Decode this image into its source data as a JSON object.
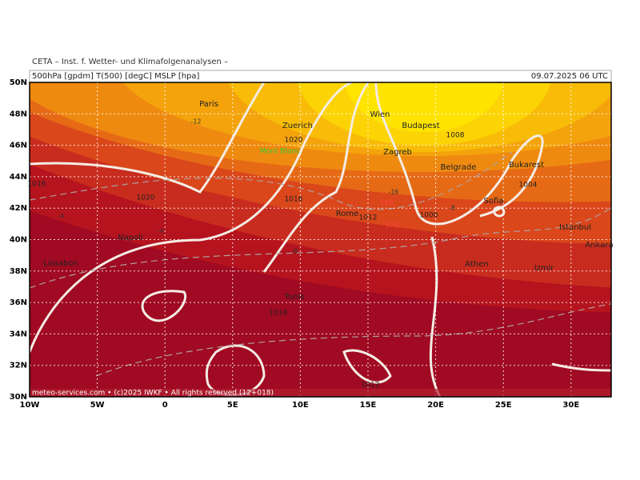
{
  "header": {
    "institute": "CETA – Inst. f. Wetter- und Klimafolgenanalysen –",
    "fields": "500hPa [gpdm] T(500) [degC] MSLP [hpa]",
    "valid_time": "09.07.2025 06 UTC"
  },
  "map": {
    "lat_labels": [
      "50N",
      "48N",
      "46N",
      "44N",
      "42N",
      "40N",
      "38N",
      "36N",
      "34N",
      "32N",
      "30N"
    ],
    "lon_labels": [
      "10W",
      "5W",
      "0",
      "5E",
      "10E",
      "15E",
      "20E",
      "25E",
      "30E"
    ],
    "cities": [
      "Paris",
      "Zuerich",
      "Wien",
      "Budapest",
      "Zagreb",
      "Belgrade",
      "Bukarest",
      "Sofia",
      "Rome",
      "Napoli",
      "Lissabon",
      "Istanbul",
      "Ankara",
      "Athen",
      "Izmir",
      "Tunis"
    ],
    "landmark": "Mont Blanc",
    "pressure_labels": [
      1020,
      1020,
      1016,
      1016,
      1016,
      1012,
      1012,
      1008,
      1004,
      1000
    ],
    "temperature_labels": [
      -12,
      -16,
      -8,
      -8,
      -4,
      -4
    ],
    "height_labels": [
      568,
      576
    ]
  },
  "footer": "meteo-services.com • (c)2025 IWKF • All rights reserved (12+018)"
}
